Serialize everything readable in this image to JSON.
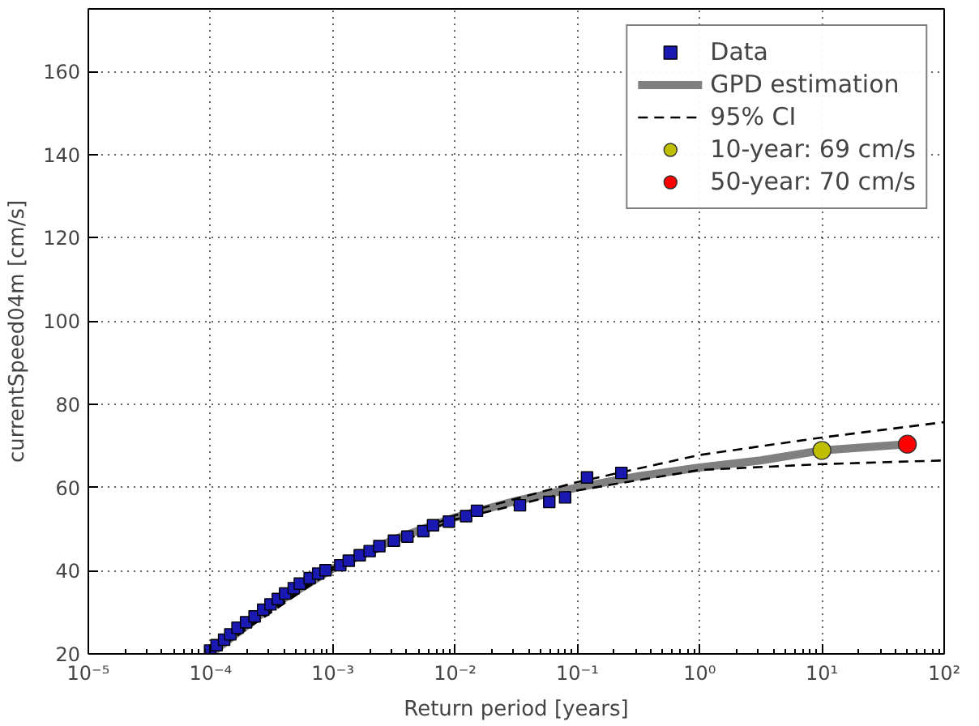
{
  "chart_data": {
    "type": "scatter",
    "xlabel": "Return period [years]",
    "ylabel": "currentSpeed04m [cm/s]",
    "log": "x",
    "grid": true,
    "legend": "top right",
    "xlim": [
      1e-05,
      100
    ],
    "ylim": [
      20,
      175
    ],
    "xticks": [
      {
        "value": 1e-05,
        "label": "10⁻⁵"
      },
      {
        "value": 0.0001,
        "label": "10⁻⁴"
      },
      {
        "value": 0.001,
        "label": "10⁻³"
      },
      {
        "value": 0.01,
        "label": "10⁻²"
      },
      {
        "value": 0.1,
        "label": "10⁻¹"
      },
      {
        "value": 1,
        "label": "10⁰"
      },
      {
        "value": 10,
        "label": "10¹"
      },
      {
        "value": 100,
        "label": "10²"
      }
    ],
    "yticks": [
      20,
      40,
      60,
      80,
      100,
      120,
      140,
      160
    ],
    "series": [
      {
        "name": "Data",
        "marker": "square",
        "color": "#1a1ab3",
        "x": [
          9.9e-05,
          0.000112,
          0.000129,
          0.000145,
          0.000166,
          0.000195,
          0.000229,
          0.000269,
          0.000309,
          0.000355,
          0.000407,
          0.000479,
          0.000537,
          0.000646,
          0.000759,
          0.000871,
          0.00115,
          0.00135,
          0.00166,
          0.002,
          0.0024,
          0.00316,
          0.00407,
          0.0055,
          0.0066,
          0.0089,
          0.0123,
          0.0151,
          0.0339,
          0.0589,
          0.0794,
          0.12,
          0.229
        ],
        "values": [
          20.8,
          22.1,
          23.4,
          24.7,
          26.3,
          27.6,
          29.0,
          30.6,
          31.9,
          33.2,
          34.5,
          35.8,
          36.9,
          38.2,
          39.3,
          40.1,
          41.3,
          42.4,
          43.7,
          44.7,
          45.9,
          47.2,
          48.2,
          49.5,
          50.9,
          51.8,
          53.1,
          54.4,
          55.7,
          56.5,
          57.6,
          62.4,
          63.5
        ]
      },
      {
        "name": "GPD estimation",
        "type": "line",
        "line_style": "solid",
        "color": "#808080",
        "x": [
          0.0001,
          0.000316,
          0.001,
          0.00316,
          0.01,
          0.0316,
          0.1,
          0.316,
          1,
          3.16,
          10,
          50
        ],
        "values": [
          20,
          31.5,
          40.5,
          47.5,
          52.8,
          56.8,
          60,
          62.7,
          64.8,
          66.5,
          68.9,
          70.4
        ]
      },
      {
        "name": "95% CI",
        "type": "line",
        "line_style": "dashed",
        "color": "#000000",
        "x": [
          0.0001,
          0.001,
          0.01,
          0.1,
          1,
          10,
          100
        ],
        "values": [
          20.3,
          40.8,
          53.3,
          61.3,
          67.8,
          72,
          75.7
        ]
      },
      {
        "type": "line",
        "line_style": "dashed",
        "color": "#000000",
        "x": [
          0.0001,
          0.001,
          0.01,
          0.1,
          1,
          10,
          100
        ],
        "values": [
          20,
          40.2,
          52.3,
          59.3,
          64.2,
          65.6,
          66.5
        ]
      },
      {
        "name": "10-year: 69 cm/s",
        "type": "scatter",
        "marker": "circle",
        "color": "#bfbf00",
        "x": [
          10
        ],
        "values": [
          68.9
        ]
      },
      {
        "name": "50-year: 70 cm/s",
        "type": "scatter",
        "marker": "circle",
        "color": "#ff0000",
        "x": [
          50
        ],
        "values": [
          70.4
        ]
      }
    ]
  }
}
